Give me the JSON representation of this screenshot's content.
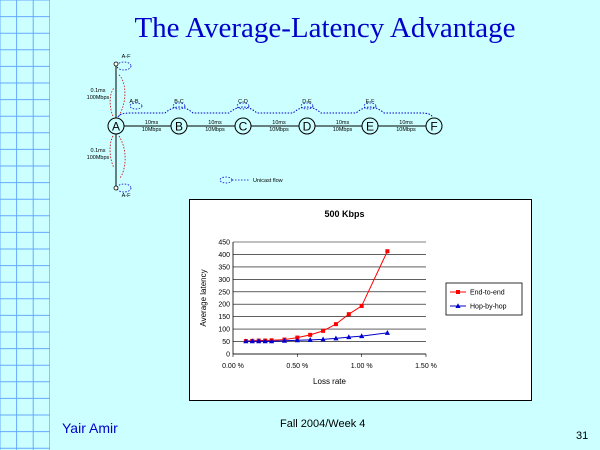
{
  "slide": {
    "title": "The Average-Latency Advantage",
    "author": "Yair Amir",
    "footer": "Fall 2004/Week 4",
    "page_number": "31"
  },
  "colors": {
    "background": "#ccffff",
    "title": "#0000cc",
    "end_to_end": "#ff0000",
    "hop_by_hop": "#0000cc",
    "flow_line": "#0000cc",
    "branch_flow_line": "#cc0000"
  },
  "diagram": {
    "nodes": [
      "A",
      "B",
      "C",
      "D",
      "E",
      "F"
    ],
    "link_label_line1": "10ms",
    "link_label_line2": "10Mbps",
    "branch_label_line1": "0.1ms",
    "branch_label_line2": "100Mbps",
    "flow_labels": [
      "A-B",
      "B-C",
      "C-D",
      "D-E",
      "E-F"
    ],
    "branch_top_label": "A-F",
    "branch_bottom_label": "A-F",
    "legend_label": "Unicast flow"
  },
  "chart_data": {
    "type": "line",
    "title": "500 Kbps",
    "xlabel": "Loss rate",
    "ylabel": "Average latency",
    "xlim": [
      0,
      1.5
    ],
    "ylim": [
      0,
      450
    ],
    "x_ticks": [
      "0.00 %",
      "0.50 %",
      "1.00 %",
      "1.50 %"
    ],
    "y_ticks": [
      "0",
      "50",
      "100",
      "150",
      "200",
      "250",
      "300",
      "350",
      "400",
      "450"
    ],
    "grid": "horizontal",
    "legend_position": "right",
    "series": [
      {
        "name": "End-to-end",
        "marker": "square",
        "x": [
          0.1,
          0.15,
          0.2,
          0.25,
          0.3,
          0.4,
          0.5,
          0.6,
          0.7,
          0.8,
          0.9,
          1.0,
          1.2
        ],
        "y": [
          52,
          53,
          54,
          54,
          55,
          58,
          66,
          77,
          93,
          120,
          160,
          193,
          413
        ]
      },
      {
        "name": "Hop-by-hop",
        "marker": "triangle",
        "x": [
          0.1,
          0.15,
          0.2,
          0.25,
          0.3,
          0.4,
          0.5,
          0.6,
          0.7,
          0.8,
          0.9,
          1.0,
          1.2
        ],
        "y": [
          51,
          51,
          51,
          51,
          51,
          53,
          55,
          57,
          59,
          63,
          68,
          72,
          85
        ]
      }
    ]
  }
}
